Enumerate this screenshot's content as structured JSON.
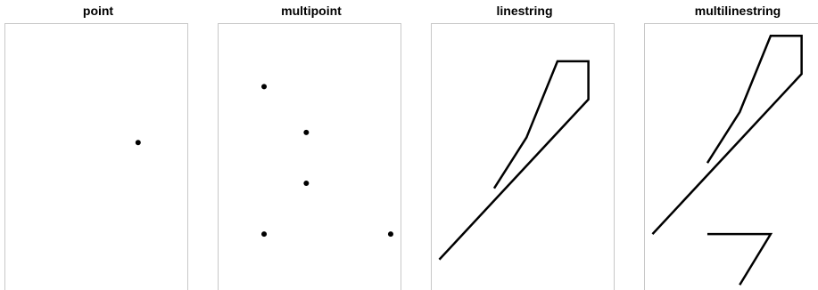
{
  "panels": [
    {
      "title": "point",
      "geometry": {
        "type": "point",
        "points": [
          [
            10,
            5.8
          ]
        ]
      }
    },
    {
      "title": "multipoint",
      "geometry": {
        "type": "multipoint",
        "points": [
          [
            3.8,
            8.0
          ],
          [
            6.8,
            6.2
          ],
          [
            6.8,
            4.2
          ],
          [
            3.8,
            2.2
          ],
          [
            12.8,
            2.2
          ]
        ]
      }
    },
    {
      "title": "linestring",
      "geometry": {
        "type": "linestring",
        "lines": [
          [
            [
              5.0,
              4.0
            ],
            [
              7.3,
              6.0
            ],
            [
              9.5,
              9.0
            ],
            [
              11.7,
              9.0
            ],
            [
              11.7,
              7.5
            ],
            [
              1.1,
              1.2
            ]
          ]
        ]
      }
    },
    {
      "title": "multilinestring",
      "geometry": {
        "type": "multilinestring",
        "lines": [
          [
            [
              5.0,
              5.0
            ],
            [
              7.3,
              7.0
            ],
            [
              9.5,
              10.0
            ],
            [
              11.7,
              10.0
            ],
            [
              11.7,
              8.5
            ],
            [
              1.1,
              2.2
            ]
          ],
          [
            [
              5.0,
              2.2
            ],
            [
              9.5,
              2.2
            ],
            [
              7.3,
              0.2
            ]
          ]
        ]
      }
    }
  ],
  "colors": {
    "frame": "#c8c8c8",
    "ink": "#000000",
    "background": "#ffffff"
  }
}
